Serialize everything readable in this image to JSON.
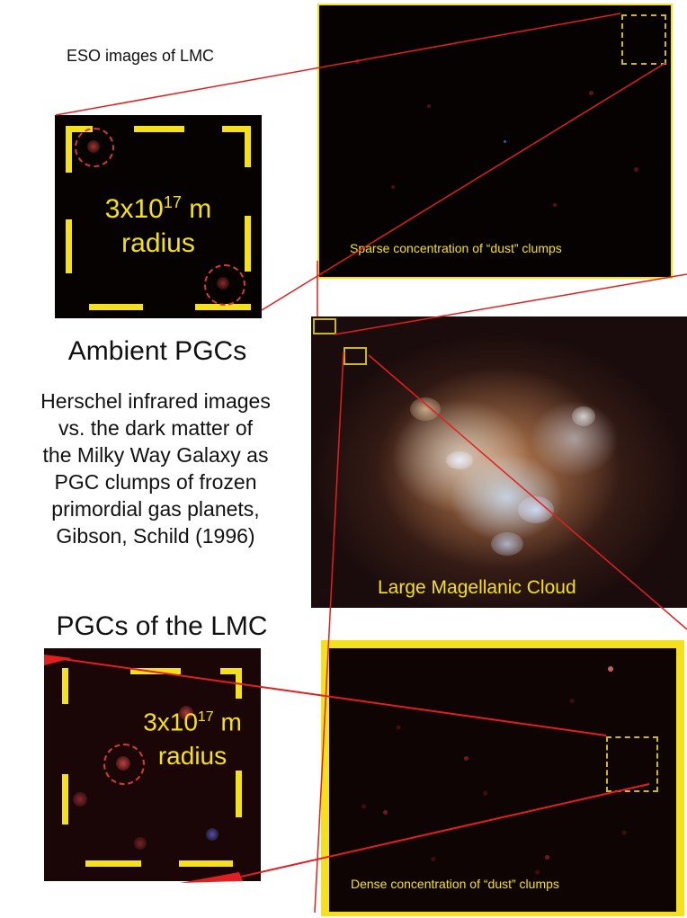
{
  "labels": {
    "eso_caption": "ESO images of LMC",
    "ambient_title": "Ambient PGCs",
    "description": [
      "Herschel infrared images",
      "vs. the dark matter of",
      "the Milky Way Galaxy as",
      "PGC clumps of frozen",
      "primordial gas planets,",
      "Gibson, Schild (1996)"
    ],
    "lmc_pgcs_title": "PGCs of the LMC",
    "zoom_top": {
      "base": "3x10",
      "exponent": "17",
      "unit": " m",
      "second_line": "radius"
    },
    "zoom_bottom": {
      "base": "3x10",
      "exponent": "17",
      "unit": " m",
      "second_line": "radius"
    },
    "sparse_caption": "Sparse concentration of “dust” clumps",
    "dense_caption": "Dense concentration of “dust” clumps",
    "lmc_caption": "Large Magellanic Cloud"
  },
  "colors": {
    "accent_yellow": "#f4e11c",
    "connector_red": "#e02020",
    "panel_black": "#060202"
  }
}
